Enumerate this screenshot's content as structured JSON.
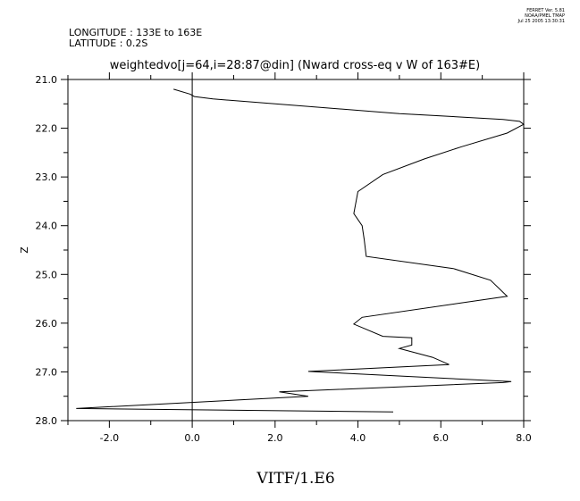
{
  "header": {
    "longitude": "LONGITUDE : 133E to 163E",
    "latitude": "LATITUDE : 0.2S",
    "stamp": [
      "FERRET Ver. 5.81",
      "NOAA/PMEL TMAP",
      "Jul 25 2005 13:30:31"
    ]
  },
  "chart_data": {
    "type": "line",
    "title": "weightedvo[j=64,i=28:87@din] (Nward cross-eq v W of 163#E)",
    "xlabel": "VITF/1.E6",
    "ylabel": "Z",
    "xlim": [
      -3.0,
      8.0
    ],
    "ylim": [
      28.0,
      21.0
    ],
    "y_inverted": true,
    "grid": false,
    "x_ticks": [
      -2.0,
      0.0,
      2.0,
      4.0,
      6.0,
      8.0
    ],
    "x_tick_labels": [
      "-2.0",
      "0.0",
      "2.0",
      "4.0",
      "6.0",
      "8.0"
    ],
    "y_ticks": [
      21.0,
      22.0,
      23.0,
      24.0,
      25.0,
      26.0,
      27.0,
      28.0
    ],
    "y_tick_labels": [
      "21.0",
      "22.0",
      "23.0",
      "24.0",
      "25.0",
      "26.0",
      "27.0",
      "28.0"
    ],
    "series": [
      {
        "x": [
          -0.45,
          -0.05,
          0.05,
          0.5,
          2.0,
          5.0,
          7.5,
          7.9,
          8.0,
          7.6,
          6.5,
          5.6,
          4.6,
          4.0,
          3.9,
          4.1,
          4.15,
          4.2,
          6.3,
          7.2,
          7.6,
          4.1,
          3.9,
          4.6,
          5.3,
          5.3,
          5.0,
          5.8,
          6.2,
          2.8,
          7.7,
          7.5,
          2.1,
          2.8,
          -2.8,
          4.85
        ],
        "y": [
          21.2,
          21.3,
          21.35,
          21.4,
          21.5,
          21.7,
          21.82,
          21.86,
          21.92,
          22.1,
          22.38,
          22.63,
          22.95,
          23.3,
          23.75,
          24.0,
          24.28,
          24.63,
          24.88,
          25.12,
          25.45,
          25.88,
          26.02,
          26.27,
          26.3,
          26.45,
          26.52,
          26.7,
          26.85,
          26.99,
          27.2,
          27.22,
          27.41,
          27.5,
          27.75,
          27.82
        ]
      }
    ]
  }
}
